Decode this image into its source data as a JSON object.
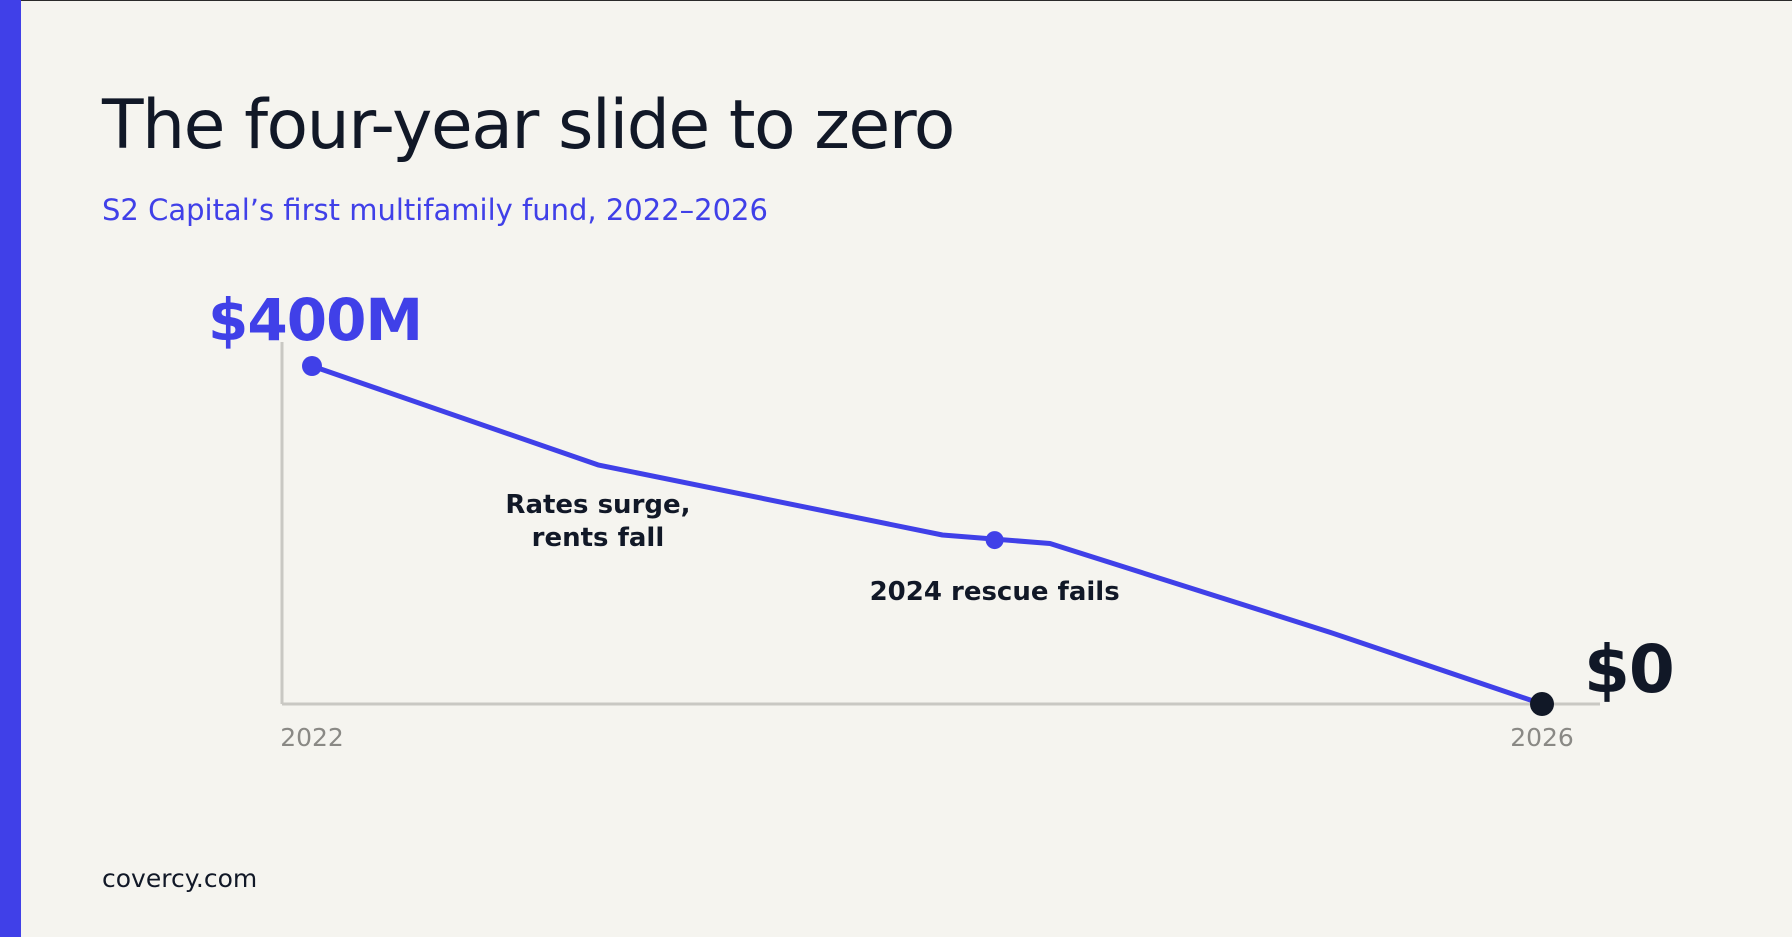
{
  "header": {
    "title": "The four-year slide to zero",
    "subtitle": "S2 Capital’s first multifamily fund, 2022–2026"
  },
  "footer": {
    "source": "covercy.com"
  },
  "colors": {
    "accent": "#4040e8",
    "ink": "#111827",
    "axis": "#c9c8c3",
    "tick": "#8a8985",
    "background": "#f5f4ef"
  },
  "chart_data": {
    "type": "line",
    "title": "The four-year slide to zero",
    "subtitle": "S2 Capital’s first multifamily fund, 2022–2026",
    "xlabel": "",
    "ylabel": "",
    "xlim": [
      2022,
      2026
    ],
    "ylim": [
      0,
      400
    ],
    "y_unit": "$M",
    "grid": false,
    "legend": "none",
    "x_tick_labels": [
      "2022",
      "2026"
    ],
    "series": [
      {
        "values": [
          {
            "x": 2022.0,
            "y": 400
          },
          {
            "x": 2022.93,
            "y": 283
          },
          {
            "x": 2024.05,
            "y": 200
          },
          {
            "x": 2024.4,
            "y": 190
          },
          {
            "x": 2025.31,
            "y": 85
          },
          {
            "x": 2026.0,
            "y": 0
          }
        ]
      }
    ],
    "markers": [
      {
        "x": 2022.0,
        "y": 400,
        "style": "accent"
      },
      {
        "x": 2024.22,
        "y": 194,
        "style": "accent"
      },
      {
        "x": 2026.0,
        "y": 0,
        "style": "ink"
      }
    ],
    "value_labels": [
      {
        "text": "$400M",
        "x": 2022.0,
        "y": 400
      },
      {
        "text": "$0",
        "x": 2026.0,
        "y": 0
      }
    ],
    "annotations": [
      {
        "lines": [
          "Rates surge,",
          "rents fall"
        ],
        "x": 2022.93,
        "y": 283
      },
      {
        "lines": [
          "2024 rescue fails"
        ],
        "x": 2024.22,
        "y": 194
      }
    ]
  }
}
